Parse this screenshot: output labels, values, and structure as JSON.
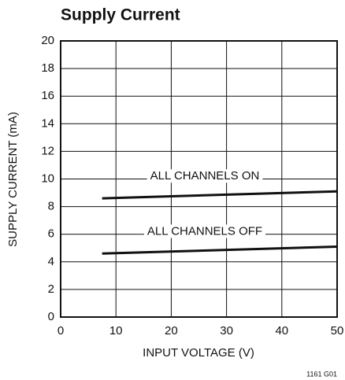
{
  "chart_data": {
    "type": "line",
    "title": "Supply Current",
    "xlabel": "INPUT VOLTAGE (V)",
    "ylabel": "SUPPLY CURRENT (mA)",
    "figure_id": "1161 G01",
    "x": [
      7.5,
      50
    ],
    "series": [
      {
        "name": "ALL CHANNELS ON",
        "color": "#111111",
        "values": [
          8.6,
          9.1
        ]
      },
      {
        "name": "ALL CHANNELS OFF",
        "color": "#111111",
        "values": [
          4.6,
          5.1
        ]
      }
    ],
    "xlim": [
      0,
      50
    ],
    "xticks": [
      0,
      10,
      20,
      30,
      40,
      50
    ],
    "ylim": [
      0,
      20
    ],
    "yticks": [
      0,
      2,
      4,
      6,
      8,
      10,
      12,
      14,
      16,
      18,
      20
    ],
    "grid": true
  }
}
